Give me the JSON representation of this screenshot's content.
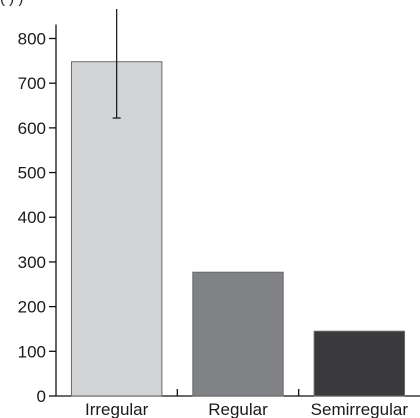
{
  "header_text": "(                                              )                                         )",
  "chart_data": {
    "type": "bar",
    "categories": [
      "Irregular",
      "Regular",
      "Semirregular"
    ],
    "values": [
      748,
      277,
      145
    ],
    "error_bars": [
      {
        "category": "Irregular",
        "low": 622,
        "high": 866
      }
    ],
    "title": "",
    "xlabel": "",
    "ylabel": "",
    "ylim": [
      0,
      866
    ],
    "yticks": [
      0,
      100,
      200,
      300,
      400,
      500,
      600,
      700,
      800
    ],
    "grid": false,
    "colors": {
      "Irregular": "#d3d4d6",
      "Regular": "#808285",
      "Semirregular": "#3a3a3c"
    },
    "outline_color": "#6a6a6a",
    "axis_color": "#111111"
  }
}
